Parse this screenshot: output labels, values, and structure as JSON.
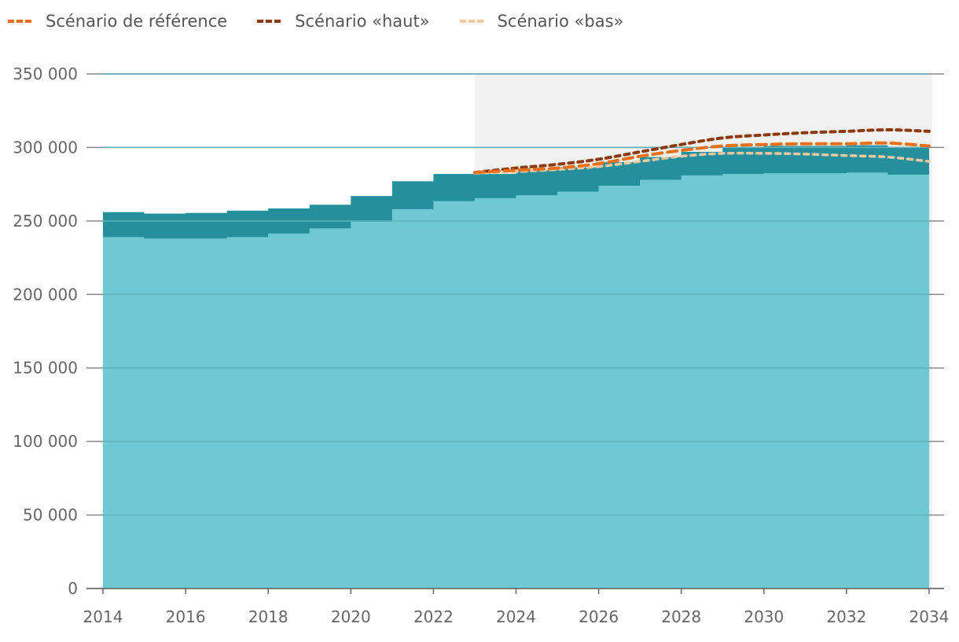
{
  "legend": {
    "items": [
      {
        "label": "Scénario de référence",
        "color": "#e8701a"
      },
      {
        "label": "Scénario «haut»",
        "color": "#8b3a0e"
      },
      {
        "label": "Scénario «bas»",
        "color": "#f7c9a0"
      }
    ]
  },
  "colors": {
    "base_area": "#6fc9d4",
    "band_area": "#268f9c",
    "projection_shading": "#f2f2f2",
    "gridline": "#888888",
    "gridline_over_area": "#5fb2bc"
  },
  "chart_data": {
    "type": "area",
    "title": "",
    "xlabel": "",
    "ylabel": "",
    "xlim": [
      2014,
      2034
    ],
    "ylim": [
      0,
      350000
    ],
    "grid": true,
    "legend_position": "top-left",
    "x_ticks": [
      "2014",
      "2016",
      "2018",
      "2020",
      "2022",
      "2024",
      "2026",
      "2028",
      "2030",
      "2032",
      "2034"
    ],
    "y_ticks": [
      "0",
      "50 000",
      "100 000",
      "150 000",
      "200 000",
      "250 000",
      "300 000",
      "350 000"
    ],
    "projection_start": 2023,
    "steps": {
      "x": [
        2014,
        2015,
        2016,
        2017,
        2018,
        2019,
        2020,
        2021,
        2022,
        2023,
        2024,
        2025,
        2026,
        2027,
        2028,
        2029,
        2030,
        2031,
        2032,
        2033
      ],
      "lower": [
        239000,
        238000,
        238000,
        239000,
        241500,
        245000,
        249500,
        258000,
        263500,
        265500,
        267500,
        270000,
        274000,
        278000,
        281000,
        282000,
        282500,
        282500,
        283000,
        281500
      ],
      "upper": [
        256000,
        255000,
        255500,
        257000,
        258500,
        261000,
        267000,
        277000,
        282000,
        282000,
        284500,
        286500,
        290000,
        293500,
        297000,
        300000,
        301000,
        301000,
        301500,
        300000
      ]
    },
    "series": [
      {
        "name": "Scénario de référence",
        "x": [
          2023,
          2024,
          2025,
          2026,
          2027,
          2028,
          2029,
          2030,
          2031,
          2032,
          2033,
          2034
        ],
        "values": [
          283000,
          284500,
          286000,
          289000,
          294000,
          298000,
          301000,
          302000,
          302500,
          302500,
          303000,
          301000
        ]
      },
      {
        "name": "Scénario «haut»",
        "x": [
          2023,
          2024,
          2025,
          2026,
          2027,
          2028,
          2029,
          2030,
          2031,
          2032,
          2033,
          2034
        ],
        "values": [
          283000,
          286000,
          288500,
          292000,
          297000,
          302000,
          306500,
          308500,
          310000,
          311000,
          312000,
          311000
        ]
      },
      {
        "name": "Scénario «bas»",
        "x": [
          2023,
          2024,
          2025,
          2026,
          2027,
          2028,
          2029,
          2030,
          2031,
          2032,
          2033,
          2034
        ],
        "values": [
          282500,
          283500,
          285000,
          287000,
          290500,
          294000,
          296000,
          296000,
          295500,
          294500,
          293500,
          290500
        ]
      }
    ]
  }
}
